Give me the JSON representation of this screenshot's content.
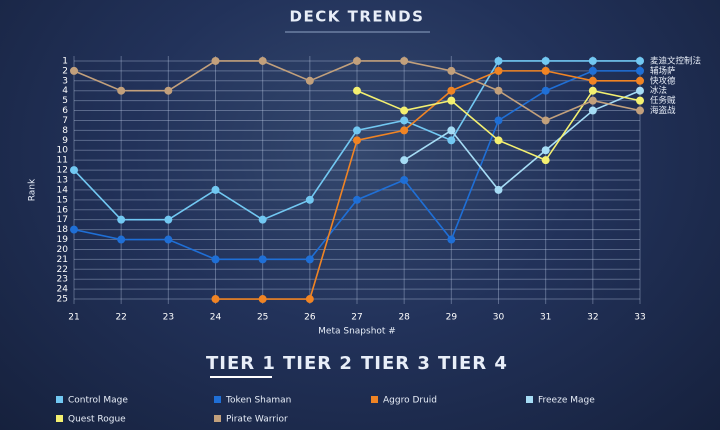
{
  "chart_data": {
    "type": "line",
    "title": "DECK TRENDS",
    "x_label": "Meta Snapshot #",
    "y_label": "Rank",
    "x": [
      21,
      22,
      23,
      24,
      25,
      26,
      27,
      28,
      29,
      30,
      31,
      32,
      33
    ],
    "xlim": [
      21,
      33
    ],
    "xticks": [
      21,
      22,
      23,
      24,
      25,
      26,
      27,
      28,
      29,
      30,
      31,
      32,
      33
    ],
    "ylim": [
      25.5,
      0.5
    ],
    "yticks": [
      1,
      2,
      3,
      4,
      5,
      6,
      7,
      8,
      9,
      10,
      11,
      12,
      13,
      14,
      15,
      16,
      17,
      18,
      19,
      20,
      21,
      22,
      23,
      24,
      25
    ],
    "grid": true,
    "series": [
      {
        "name": "Control Mage",
        "color": "#72c8f2",
        "values": [
          12,
          17,
          17,
          14,
          17,
          15,
          8,
          7,
          9,
          1,
          1,
          1,
          1
        ]
      },
      {
        "name": "Token Shaman",
        "color": "#1f6fd6",
        "values": [
          18,
          19,
          19,
          21,
          21,
          21,
          15,
          13,
          19,
          7,
          4,
          2,
          2
        ]
      },
      {
        "name": "Aggro Druid",
        "color": "#f08424",
        "values": [
          null,
          null,
          null,
          25,
          25,
          25,
          9,
          8,
          4,
          2,
          2,
          3,
          3
        ]
      },
      {
        "name": "Freeze Mage",
        "color": "#a6dcf5",
        "values": [
          null,
          null,
          null,
          null,
          null,
          null,
          null,
          11,
          8,
          14,
          10,
          6,
          4
        ]
      },
      {
        "name": "Quest Rogue",
        "color": "#f4f070",
        "values": [
          null,
          null,
          null,
          null,
          null,
          null,
          4,
          6,
          5,
          9,
          11,
          4,
          5
        ]
      },
      {
        "name": "Pirate Warrior",
        "color": "#c2a07c",
        "values": [
          2,
          4,
          4,
          1,
          1,
          3,
          1,
          1,
          2,
          4,
          7,
          5,
          6
        ]
      }
    ],
    "end_labels": [
      "麦迪文控制法",
      "辅场萨",
      "快攻德",
      "冰法",
      "任务贼",
      "海盗战"
    ]
  },
  "tabs": [
    "TIER 1",
    "TIER 2",
    "TIER 3",
    "TIER 4"
  ]
}
